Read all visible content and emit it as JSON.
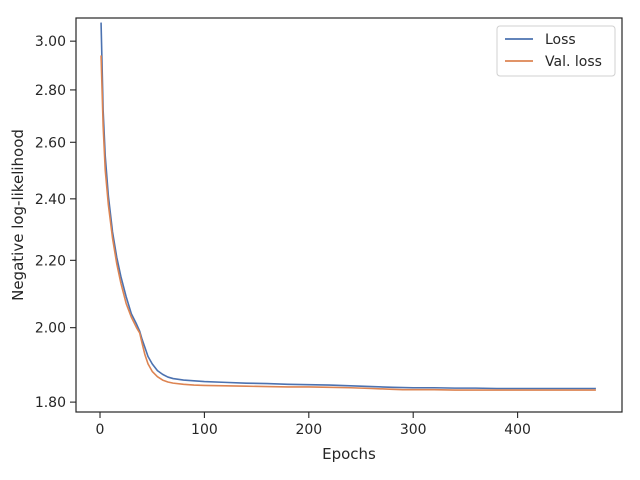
{
  "chart_data": {
    "type": "line",
    "title": "",
    "xlabel": "Epochs",
    "ylabel": "Negative log-likelihood",
    "xlim": [
      -23,
      500
    ],
    "ylim": [
      1.775,
      3.1
    ],
    "yscale": "log",
    "grid": false,
    "legend_position": "top-right",
    "x_ticks": [
      0,
      100,
      200,
      300,
      400
    ],
    "x_tick_labels": [
      "0",
      "100",
      "200",
      "300",
      "400"
    ],
    "y_ticks": [
      1.8,
      2.0,
      2.2,
      2.4,
      2.6,
      2.8,
      3.0
    ],
    "y_tick_labels": [
      "1.80",
      "2.00",
      "2.20",
      "2.40",
      "2.60",
      "2.80",
      "3.00"
    ],
    "series": [
      {
        "name": "Loss",
        "color": "#4c72b0",
        "x": [
          1,
          3,
          5,
          8,
          12,
          16,
          20,
          25,
          30,
          35,
          38,
          40,
          43,
          46,
          50,
          55,
          60,
          65,
          70,
          80,
          90,
          100,
          120,
          140,
          160,
          180,
          200,
          220,
          240,
          260,
          280,
          300,
          320,
          340,
          360,
          380,
          400,
          420,
          440,
          460,
          475
        ],
        "y": [
          3.08,
          2.72,
          2.55,
          2.41,
          2.29,
          2.21,
          2.15,
          2.09,
          2.04,
          2.01,
          1.99,
          1.97,
          1.945,
          1.92,
          1.9,
          1.882,
          1.872,
          1.865,
          1.861,
          1.857,
          1.855,
          1.853,
          1.851,
          1.849,
          1.848,
          1.846,
          1.845,
          1.844,
          1.842,
          1.84,
          1.838,
          1.837,
          1.837,
          1.836,
          1.836,
          1.835,
          1.835,
          1.835,
          1.835,
          1.835,
          1.835
        ]
      },
      {
        "name": "Val. loss",
        "color": "#dd8452",
        "x": [
          1,
          3,
          5,
          8,
          12,
          16,
          20,
          25,
          30,
          35,
          38,
          40,
          43,
          46,
          50,
          55,
          60,
          65,
          70,
          80,
          90,
          100,
          120,
          140,
          160,
          180,
          200,
          220,
          240,
          260,
          280,
          290,
          300,
          320,
          340,
          360,
          380,
          400,
          420,
          440,
          460,
          475
        ],
        "y": [
          2.94,
          2.66,
          2.5,
          2.38,
          2.27,
          2.19,
          2.13,
          2.07,
          2.03,
          2.0,
          1.985,
          1.96,
          1.925,
          1.9,
          1.88,
          1.866,
          1.857,
          1.852,
          1.849,
          1.846,
          1.844,
          1.843,
          1.842,
          1.841,
          1.84,
          1.839,
          1.839,
          1.838,
          1.837,
          1.835,
          1.833,
          1.832,
          1.832,
          1.832,
          1.831,
          1.831,
          1.831,
          1.831,
          1.831,
          1.831,
          1.831,
          1.831
        ]
      }
    ]
  }
}
